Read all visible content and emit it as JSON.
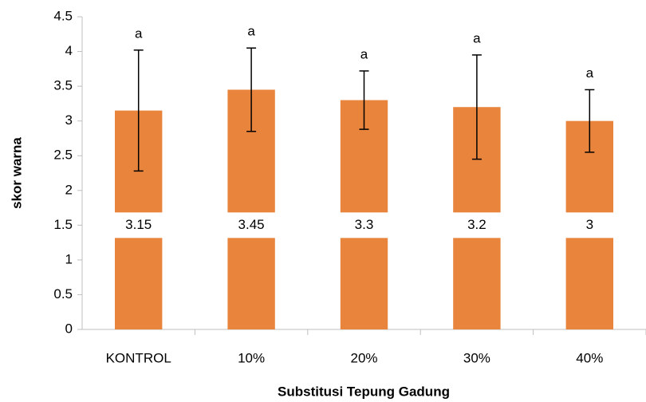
{
  "chart_data": {
    "type": "bar",
    "categories": [
      "KONTROL",
      "10%",
      "20%",
      "30%",
      "40%"
    ],
    "values": [
      3.15,
      3.45,
      3.3,
      3.2,
      3
    ],
    "errors": [
      0.87,
      0.6,
      0.42,
      0.75,
      0.45
    ],
    "letters": [
      "a",
      "a",
      "a",
      "a",
      "a"
    ],
    "color": "#e8843c",
    "x_label": "Substitusi Tepung Gadung",
    "y_label": "skor warna",
    "ylim": [
      0,
      4.5
    ],
    "yticks": [
      0,
      0.5,
      1,
      1.5,
      2,
      2.5,
      3,
      3.5,
      4,
      4.5
    ]
  }
}
